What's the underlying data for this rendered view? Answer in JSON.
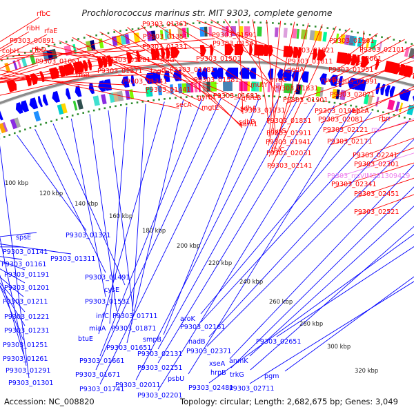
{
  "title": "Prochlorococcus marinus str. MIT 9303, complete genome",
  "footer": {
    "accession": "Accession: NC_008820",
    "topology": "Topology: circular; Length: 2,682,675 bp; Genes: 3,049"
  },
  "colors": {
    "forward": "#ff0000",
    "reverse": "#0000ff",
    "rna": "#ee82ee",
    "backbone": "#808080",
    "dots": "#2e8b2e"
  },
  "scale_labels": [
    "100 kbp",
    "120 kbp",
    "140 kbp",
    "160 kbp",
    "180 kbp",
    "200 kbp",
    "220 kbp",
    "240 kbp",
    "260 kbp",
    "280 kbp",
    "300 kbp",
    "320 kbp"
  ],
  "top_labels": [
    {
      "text": "rfbC",
      "color": "forward"
    },
    {
      "text": "ribH",
      "color": "forward"
    },
    {
      "text": "rfaE",
      "color": "forward"
    },
    {
      "text": "P9303_00891",
      "color": "forward"
    },
    {
      "text": "rfbD",
      "color": "forward"
    },
    {
      "text": "cobH",
      "color": "forward"
    },
    {
      "text": "P9303_01061",
      "color": "forward"
    },
    {
      "text": "rfbB",
      "color": "forward"
    },
    {
      "text": "P9303_01361",
      "color": "forward"
    },
    {
      "text": "P9303_01351",
      "color": "forward"
    },
    {
      "text": "P9303_01331",
      "color": "forward"
    },
    {
      "text": "P9303_01281",
      "color": "forward"
    },
    {
      "text": "rfbG",
      "color": "forward"
    },
    {
      "text": "P9303_01271",
      "color": "forward"
    },
    {
      "text": "tagG",
      "color": "forward"
    },
    {
      "text": "P9303_01341",
      "color": "forward"
    },
    {
      "text": "P9303_01441",
      "color": "forward"
    },
    {
      "text": "secA",
      "color": "forward"
    },
    {
      "text": "P9303_01591",
      "color": "forward"
    },
    {
      "text": "P9303_01541",
      "color": "forward"
    },
    {
      "text": "P9303_01501",
      "color": "forward"
    },
    {
      "text": "P9303_01481",
      "color": "forward"
    },
    {
      "text": "P9303_01581",
      "color": "forward"
    },
    {
      "text": "gyrB",
      "color": "forward"
    },
    {
      "text": "mgtE",
      "color": "forward"
    },
    {
      "text": "mreB",
      "color": "forward"
    },
    {
      "text": "P9303_01681",
      "color": "forward"
    },
    {
      "text": "sdhA",
      "color": "forward"
    },
    {
      "text": "sdhB",
      "color": "forward"
    },
    {
      "text": "sam1",
      "color": "forward"
    },
    {
      "text": "mutY",
      "color": "forward"
    },
    {
      "text": "mreC",
      "color": "forward"
    },
    {
      "text": "dedA",
      "color": "forward"
    },
    {
      "text": "P9303_01821",
      "color": "forward"
    },
    {
      "text": "P9303_01811",
      "color": "forward"
    },
    {
      "text": "P9303_01831",
      "color": "forward"
    },
    {
      "text": "P9303_01731",
      "color": "forward"
    },
    {
      "text": "P9303_01851",
      "color": "forward"
    },
    {
      "text": "lysS",
      "color": "forward"
    },
    {
      "text": "P9303_01911",
      "color": "forward"
    },
    {
      "text": "P9303_01941",
      "color": "forward"
    },
    {
      "text": "thiC",
      "color": "forward"
    },
    {
      "text": "P9303_02031",
      "color": "forward"
    },
    {
      "text": "P9303_02141",
      "color": "forward"
    },
    {
      "text": "P9303_01961",
      "color": "forward"
    },
    {
      "text": "P9303_02101",
      "color": "forward"
    },
    {
      "text": "P9303_02061",
      "color": "forward"
    },
    {
      "text": "P9303_01951",
      "color": "forward"
    },
    {
      "text": "ruvB",
      "color": "forward"
    },
    {
      "text": "P9303_01991",
      "color": "forward"
    },
    {
      "text": "P9303_02071",
      "color": "forward"
    },
    {
      "text": "P9303_01901",
      "color": "forward"
    },
    {
      "text": "P9303_01981",
      "color": "forward"
    },
    {
      "text": "bacA",
      "color": "forward"
    },
    {
      "text": "P9303_02081",
      "color": "forward"
    },
    {
      "text": "rbn",
      "color": "forward"
    },
    {
      "text": "P9303_02121",
      "color": "forward"
    },
    {
      "text": "rnr",
      "color": "rna"
    },
    {
      "text": "P9303_02171",
      "color": "forward"
    },
    {
      "text": "P9303_02241",
      "color": "forward"
    },
    {
      "text": "P9303_02301",
      "color": "forward"
    },
    {
      "text": "P9303_rrsVIMSS1309419",
      "color": "rna"
    },
    {
      "text": "P9303_02341",
      "color": "forward"
    },
    {
      "text": "P9303_02451",
      "color": "forward"
    },
    {
      "text": "P9303_02521",
      "color": "forward"
    }
  ],
  "bottom_labels": [
    {
      "text": "spsE"
    },
    {
      "text": "P9303_01141"
    },
    {
      "text": "P9303_01161"
    },
    {
      "text": "P9303_01311"
    },
    {
      "text": "P9303_01191"
    },
    {
      "text": "P9303_01201"
    },
    {
      "text": "P9303_01211"
    },
    {
      "text": "P9303_01221"
    },
    {
      "text": "P9303_01231"
    },
    {
      "text": "P9303_01251"
    },
    {
      "text": "P9303_01261"
    },
    {
      "text": "P9303_01291"
    },
    {
      "text": "P9303_01301"
    },
    {
      "text": "P9303_01321"
    },
    {
      "text": "P9303_01491"
    },
    {
      "text": "cysE"
    },
    {
      "text": "P9303_01531"
    },
    {
      "text": "infC"
    },
    {
      "text": "P9303_01711"
    },
    {
      "text": "miaA"
    },
    {
      "text": "P9303_01871"
    },
    {
      "text": "btuE"
    },
    {
      "text": "P9303_01651"
    },
    {
      "text": "P9303_01661"
    },
    {
      "text": "P9303_01671"
    },
    {
      "text": "P9303_01741"
    },
    {
      "text": "smpB"
    },
    {
      "text": "P9303_02011"
    },
    {
      "text": "P9303_02131"
    },
    {
      "text": "P9303_02151"
    },
    {
      "text": "P9303_02201"
    },
    {
      "text": "psbU"
    },
    {
      "text": "aroK"
    },
    {
      "text": "P9303_02161"
    },
    {
      "text": "nadB"
    },
    {
      "text": "P9303_02371"
    },
    {
      "text": "xseA"
    },
    {
      "text": "hrpB"
    },
    {
      "text": "anmK"
    },
    {
      "text": "trkG"
    },
    {
      "text": "P9303_02481"
    },
    {
      "text": "P9303_02651"
    },
    {
      "text": "pgm"
    },
    {
      "text": "P9303_02711"
    }
  ],
  "ring_palette": [
    "#00ced1",
    "#ffa500",
    "#32cd32",
    "#8a2be2",
    "#ff1493",
    "#1e90ff",
    "#ffd700",
    "#696969",
    "#a9a9a9",
    "#7cfc00",
    "#40e0d0",
    "#ba55d3",
    "#ff69b4",
    "#4682b4",
    "#2f4f4f",
    "#9acd32",
    "#dda0dd",
    "#000080",
    "#d2b48c",
    "#00fa9a"
  ]
}
